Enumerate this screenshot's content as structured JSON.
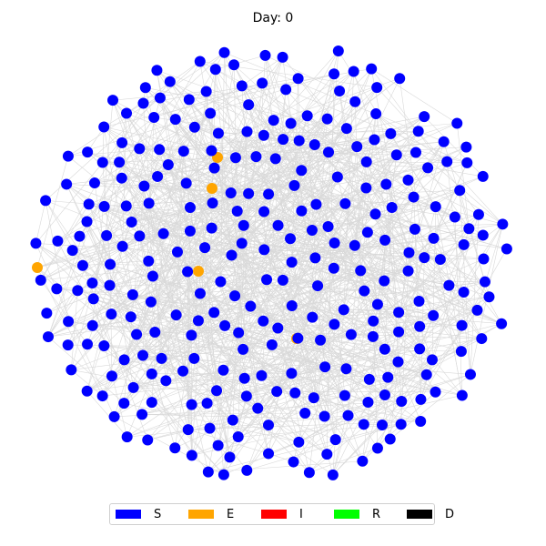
{
  "title": "Day: 0",
  "colors": {
    "S": "#0000ff",
    "E": "#ffa500",
    "I": "#ff0000",
    "R": "#00ff00",
    "D": "#000000",
    "edge": "#d9d9d9"
  },
  "legend": [
    {
      "label": "S",
      "color": "#0000ff"
    },
    {
      "label": "E",
      "color": "#ffa500"
    },
    {
      "label": "I",
      "color": "#ff0000"
    },
    {
      "label": "R",
      "color": "#00ff00"
    },
    {
      "label": "D",
      "color": "#000000"
    }
  ],
  "state_counts": {
    "S": 294,
    "E": 5,
    "I": 0,
    "R": 0,
    "D": 0
  }
}
